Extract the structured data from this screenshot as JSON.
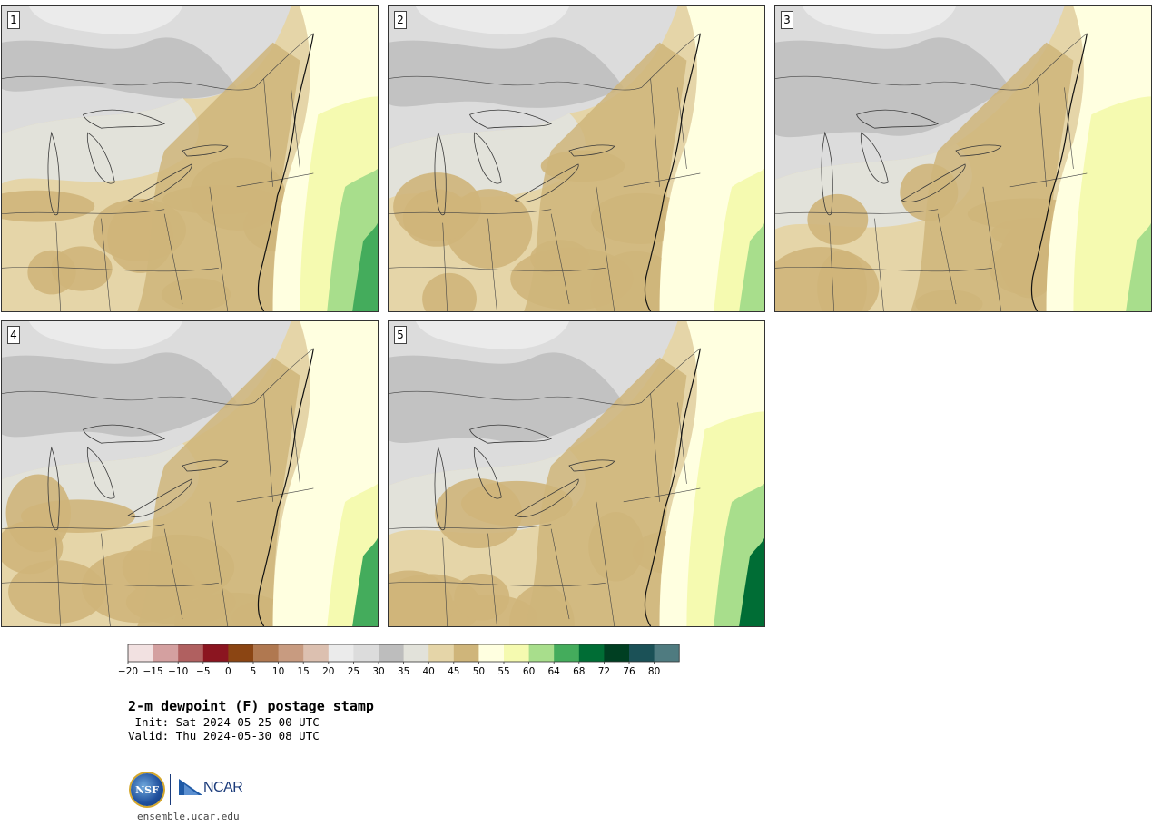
{
  "panels": [
    {
      "label": "1"
    },
    {
      "label": "2"
    },
    {
      "label": "3"
    },
    {
      "label": "4"
    },
    {
      "label": "5"
    }
  ],
  "colorbar": {
    "colors": [
      "#f2e1e1",
      "#d4a0a0",
      "#b06060",
      "#8b1520",
      "#8b4513",
      "#b07850",
      "#c89b80",
      "#dcc0b0",
      "#ebebeb",
      "#dcdcdc",
      "#bdbdbd",
      "#e2e2da",
      "#e5d5a8",
      "#cfb57a",
      "#ffffe0",
      "#f5fab0",
      "#a8de8c",
      "#44ac5c",
      "#006d35",
      "#003f22",
      "#1b5157",
      "#4f7b80"
    ],
    "tick_labels": [
      "−20",
      "−15",
      "−10",
      "−5",
      "0",
      "5",
      "10",
      "15",
      "20",
      "25",
      "30",
      "35",
      "40",
      "45",
      "50",
      "55",
      "60",
      "64",
      "68",
      "72",
      "76",
      "80"
    ]
  },
  "title": {
    "main": "2-m dewpoint (F) postage stamp",
    "init": " Init: Sat 2024-05-25 00 UTC",
    "valid": "Valid: Thu 2024-05-30 08 UTC"
  },
  "logos": {
    "nsf_text": "NSF",
    "ncar_text": "NCAR",
    "url": "ensemble.ucar.edu"
  },
  "field_colors": {
    "dry_gray": "#bdbdbd",
    "light_gray": "#dcdcdc",
    "pale": "#e2e2da",
    "tan_light": "#e5d5a8",
    "tan": "#cfb57a",
    "cream": "#ffffe0",
    "yellow_green": "#f5fab0",
    "light_green": "#a8de8c",
    "green": "#44ac5c",
    "dark_green": "#006d35"
  }
}
